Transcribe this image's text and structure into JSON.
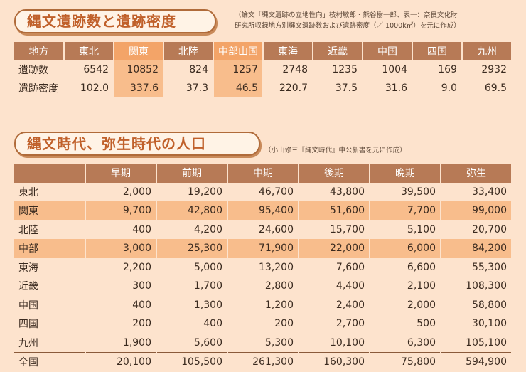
{
  "section1": {
    "title": "縄文遺跡数と遺跡密度",
    "note_line1": "（論文「縄文遺跡の立地性向」枝村敏郎・熊谷樹一郎、表一：奈良文化財",
    "note_line2": "研究所収録地方別縄文遺跡数および遺跡密度（／ 1000k㎡）を元に作成）",
    "header": [
      "地方",
      "東北",
      "関東",
      "北陸",
      "中部山国",
      "東海",
      "近畿",
      "中国",
      "四国",
      "九州"
    ],
    "highlight_columns": [
      2,
      4
    ],
    "rows": [
      {
        "label": "遺跡数",
        "values": [
          "6542",
          "10852",
          "824",
          "1257",
          "2748",
          "1235",
          "1004",
          "169",
          "2932"
        ]
      },
      {
        "label": "遺跡密度",
        "values": [
          "102.0",
          "337.6",
          "37.3",
          "46.5",
          "220.7",
          "37.5",
          "31.6",
          "9.0",
          "69.5"
        ]
      }
    ]
  },
  "section2": {
    "title": "縄文時代、弥生時代の人口",
    "note": "（小山修三『縄文時代』中公新書を元に作成）",
    "header": [
      "",
      "早期",
      "前期",
      "中期",
      "後期",
      "晩期",
      "弥生"
    ],
    "rows": [
      {
        "label": "東北",
        "highlight": false,
        "values": [
          "2,000",
          "19,200",
          "46,700",
          "43,800",
          "39,500",
          "33,400"
        ]
      },
      {
        "label": "関東",
        "highlight": true,
        "values": [
          "9,700",
          "42,800",
          "95,400",
          "51,600",
          "7,700",
          "99,000"
        ]
      },
      {
        "label": "北陸",
        "highlight": false,
        "values": [
          "400",
          "4,200",
          "24,600",
          "15,700",
          "5,100",
          "20,700"
        ]
      },
      {
        "label": "中部",
        "highlight": true,
        "values": [
          "3,000",
          "25,300",
          "71,900",
          "22,000",
          "6,000",
          "84,200"
        ]
      },
      {
        "label": "東海",
        "highlight": false,
        "values": [
          "2,200",
          "5,000",
          "13,200",
          "7,600",
          "6,600",
          "55,300"
        ]
      },
      {
        "label": "近畿",
        "highlight": false,
        "values": [
          "300",
          "1,700",
          "2,800",
          "4,400",
          "2,100",
          "108,300"
        ]
      },
      {
        "label": "中国",
        "highlight": false,
        "values": [
          "400",
          "1,300",
          "1,200",
          "2,400",
          "2,000",
          "58,800"
        ]
      },
      {
        "label": "四国",
        "highlight": false,
        "values": [
          "200",
          "400",
          "200",
          "2,700",
          "500",
          "30,100"
        ]
      },
      {
        "label": "九州",
        "highlight": false,
        "values": [
          "1,900",
          "5,600",
          "5,300",
          "10,100",
          "6,300",
          "105,100"
        ]
      }
    ],
    "total": {
      "label": "全国",
      "values": [
        "20,100",
        "105,500",
        "261,300",
        "160,300",
        "75,800",
        "594,900"
      ]
    }
  }
}
